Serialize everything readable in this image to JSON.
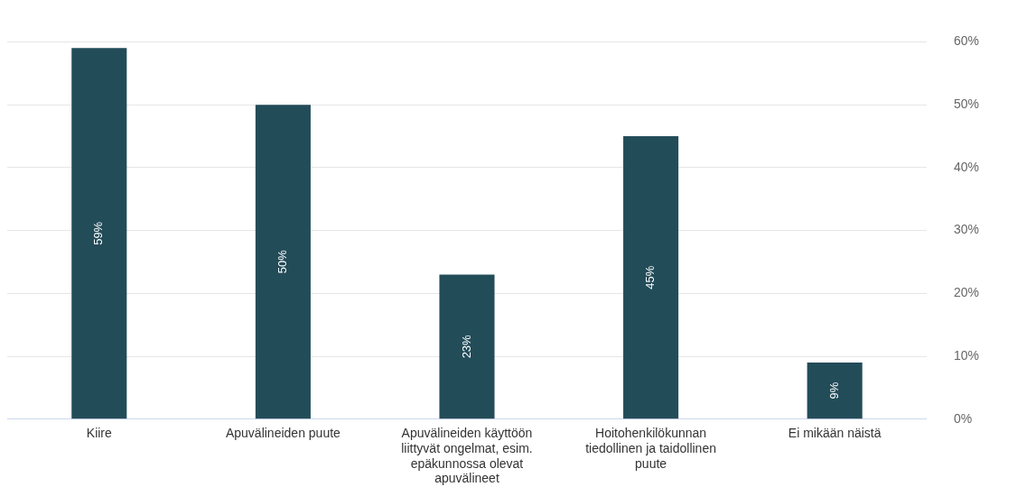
{
  "chart_data": {
    "type": "bar",
    "categories": [
      "Kiire",
      "Apuvälineiden puute",
      "Apuvälineiden käyttöön liittyvät ongelmat, esim. epäkunnossa olevat apuvälineet",
      "Hoitohenkilökunnan tiedollinen ja taidollinen puute",
      "Ei mikään näistä"
    ],
    "values": [
      59,
      50,
      23,
      45,
      9
    ],
    "value_labels": [
      "59%",
      "50%",
      "23%",
      "45%",
      "9%"
    ],
    "color": "#234c59",
    "ylim": [
      0,
      60
    ],
    "yticks": [
      {
        "value": 0,
        "label": "0%"
      },
      {
        "value": 10,
        "label": "10%"
      },
      {
        "value": 20,
        "label": "20%"
      },
      {
        "value": 30,
        "label": "30%"
      },
      {
        "value": 40,
        "label": "40%"
      },
      {
        "value": 50,
        "label": "50%"
      },
      {
        "value": 60,
        "label": "60%"
      }
    ],
    "grid": "y",
    "legend": false
  }
}
